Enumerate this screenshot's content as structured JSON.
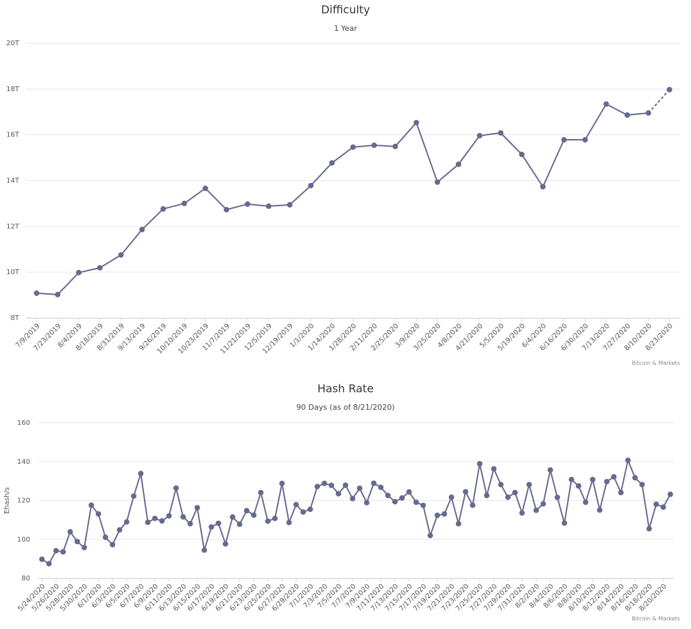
{
  "chart_data": [
    {
      "type": "line",
      "title": "Difficulty",
      "subtitle": "1 Year",
      "credit": "Bitcoin & Markets",
      "categories": [
        "7/9/2019",
        "7/23/2019",
        "8/4/2019",
        "8/18/2019",
        "8/31/2019",
        "9/13/2019",
        "9/26/2019",
        "10/10/2019",
        "10/23/2019",
        "11/7/2019",
        "11/21/2019",
        "12/5/2019",
        "12/19/2019",
        "1/1/2020",
        "1/14/2020",
        "1/28/2020",
        "2/11/2020",
        "2/25/2020",
        "3/9/2020",
        "3/25/2020",
        "4/8/2020",
        "4/21/2020",
        "5/5/2020",
        "5/19/2020",
        "6/4/2020",
        "6/16/2020",
        "6/30/2020",
        "7/13/2020",
        "7/27/2020",
        "8/10/2020",
        "8/23/2020"
      ],
      "values": [
        9.08,
        9.02,
        9.98,
        10.19,
        10.75,
        11.86,
        12.76,
        13.0,
        13.66,
        12.73,
        12.97,
        12.88,
        12.94,
        13.78,
        14.77,
        15.46,
        15.54,
        15.49,
        16.53,
        13.93,
        14.71,
        15.96,
        16.08,
        15.14,
        13.73,
        15.78,
        15.78,
        17.34,
        16.86,
        16.95,
        17.97
      ],
      "color": "#666a8e",
      "last_segment_dashed": true,
      "grid": true,
      "ylim": [
        8,
        20
      ],
      "yticks": [
        {
          "value": 8,
          "label": "8T"
        },
        {
          "value": 10,
          "label": "10T"
        },
        {
          "value": 12,
          "label": "12T"
        },
        {
          "value": 14,
          "label": "14T"
        },
        {
          "value": 16,
          "label": "16T"
        },
        {
          "value": 18,
          "label": "18T"
        },
        {
          "value": 20,
          "label": "20T"
        }
      ]
    },
    {
      "type": "line",
      "title": "Hash Rate",
      "subtitle": "90 Days (as of 8/21/2020)",
      "ylabel": "Ehash/s",
      "credit": "Bitcoin & Markets",
      "categories": [
        "5/24/2020",
        null,
        "5/26/2020",
        null,
        "5/28/2020",
        null,
        "5/30/2020",
        null,
        "6/1/2020",
        null,
        "6/3/2020",
        null,
        "6/5/2020",
        null,
        "6/7/2020",
        null,
        "6/9/2020",
        null,
        "6/11/2020",
        null,
        "6/13/2020",
        null,
        "6/15/2020",
        null,
        "6/17/2020",
        null,
        "6/19/2020",
        null,
        "6/21/2020",
        null,
        "6/23/2020",
        null,
        "6/25/2020",
        null,
        "6/27/2020",
        null,
        "6/29/2020",
        null,
        "7/1/2020",
        null,
        "7/3/2020",
        null,
        "7/5/2020",
        null,
        "7/7/2020",
        null,
        "7/9/2020",
        null,
        "7/11/2020",
        null,
        "7/13/2020",
        null,
        "7/15/2020",
        null,
        "7/17/2020",
        null,
        "7/19/2020",
        null,
        "7/21/2020",
        null,
        "7/23/2020",
        null,
        "7/25/2020",
        null,
        "7/27/2020",
        null,
        "7/29/2020",
        null,
        "7/31/2020",
        null,
        "8/2/2020",
        null,
        "8/4/2020",
        null,
        "8/6/2020",
        null,
        "8/8/2020",
        null,
        "8/10/2020",
        null,
        "8/12/2020",
        null,
        "8/14/2020",
        null,
        "8/16/2020",
        null,
        "8/18/2020",
        null,
        "8/20/2020",
        null
      ],
      "values": [
        89.8,
        87.5,
        94.2,
        93.6,
        103.9,
        98.9,
        95.8,
        117.6,
        113.1,
        101.1,
        97.3,
        104.9,
        109.0,
        122.3,
        133.9,
        108.8,
        110.8,
        109.5,
        112.1,
        126.4,
        111.6,
        108.1,
        116.3,
        94.5,
        106.4,
        108.3,
        97.7,
        111.5,
        107.8,
        114.8,
        112.5,
        124.1,
        109.4,
        110.8,
        128.8,
        108.7,
        117.9,
        114.1,
        115.5,
        127.2,
        128.8,
        127.8,
        123.5,
        127.9,
        121.0,
        126.3,
        118.9,
        128.9,
        126.8,
        122.6,
        119.4,
        121.3,
        124.4,
        119.1,
        117.5,
        102.0,
        112.4,
        113.1,
        121.7,
        108.1,
        124.5,
        117.6,
        138.9,
        122.6,
        136.3,
        128.2,
        121.7,
        124.1,
        113.6,
        128.2,
        115.0,
        118.3,
        135.7,
        121.6,
        108.4,
        130.8,
        127.5,
        119.1,
        130.8,
        115.1,
        129.7,
        132.2,
        124.1,
        140.7,
        131.7,
        128.2,
        105.5,
        118.1,
        116.6,
        123.2
      ],
      "color": "#666a8e",
      "grid": true,
      "ylim": [
        80,
        160
      ],
      "yticks": [
        80,
        100,
        120,
        140,
        160
      ]
    }
  ]
}
